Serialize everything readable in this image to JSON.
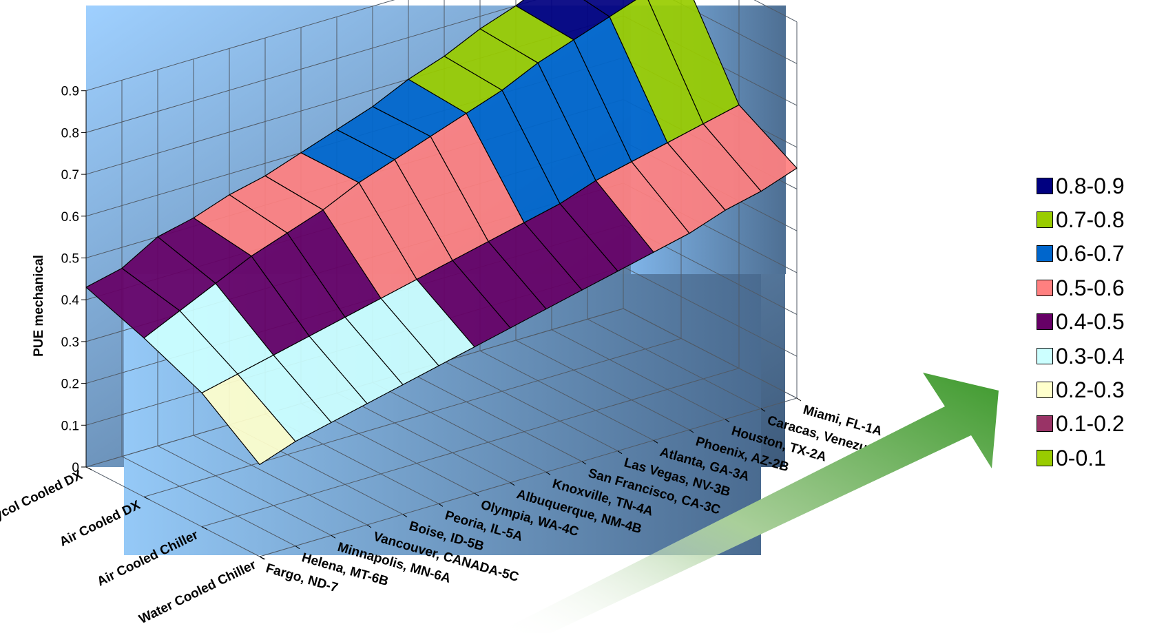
{
  "chart_data": {
    "type": "surface",
    "ylabel": "PUE mechanical",
    "zlim": [
      0,
      0.9
    ],
    "z_ticks": [
      "0",
      "0.1",
      "0.2",
      "0.3",
      "0.4",
      "0.5",
      "0.6",
      "0.7",
      "0.8",
      "0.9"
    ],
    "systems": [
      "Glycol Cooled DX",
      "Air Cooled DX",
      "Air Cooled Chiller",
      "Water Cooled Chiller"
    ],
    "climates": [
      "Fargo, ND-7",
      "Helena, MT-6B",
      "Minnapolis, MN-6A",
      "Vancouver, CANADA-5C",
      "Boise, ID-5B",
      "Peoria, IL-5A",
      "Olympia, WA-4C",
      "Albuquerque, NM-4B",
      "Knoxville, TN-4A",
      "San Francisco, CA-3C",
      "Las Vegas, NV-3B",
      "Atlanta, GA-3A",
      "Phoenix, AZ-2B",
      "Houston, TX-2A",
      "Caracas, Venezuela-1B",
      "Miami, FL-1A"
    ],
    "series": [
      {
        "name": "Glycol Cooled DX",
        "values": [
          0.43,
          0.45,
          0.5,
          0.52,
          0.55,
          0.57,
          0.6,
          0.63,
          0.66,
          0.7,
          0.73,
          0.77,
          0.8,
          0.84,
          0.87,
          0.9
        ]
      },
      {
        "name": "Air Cooled DX",
        "values": [
          0.38,
          0.42,
          0.46,
          0.5,
          0.53,
          0.56,
          0.6,
          0.63,
          0.66,
          0.69,
          0.72,
          0.76,
          0.79,
          0.82,
          0.85,
          0.88
        ]
      },
      {
        "name": "Air Cooled Chiller",
        "values": [
          0.32,
          0.34,
          0.36,
          0.38,
          0.4,
          0.42,
          0.44,
          0.46,
          0.48,
          0.5,
          0.52,
          0.55,
          0.57,
          0.59,
          0.61,
          0.63
        ]
      },
      {
        "name": "Water Cooled Chiller",
        "values": [
          0.22,
          0.25,
          0.27,
          0.29,
          0.31,
          0.33,
          0.35,
          0.37,
          0.39,
          0.41,
          0.43,
          0.45,
          0.47,
          0.5,
          0.52,
          0.55
        ]
      }
    ],
    "legend": [
      {
        "label": "0.8-0.9",
        "color": "#000080"
      },
      {
        "label": "0.7-0.8",
        "color": "#99cc00"
      },
      {
        "label": "0.6-0.7",
        "color": "#0066cc"
      },
      {
        "label": "0.5-0.6",
        "color": "#ff8080"
      },
      {
        "label": "0.4-0.5",
        "color": "#660066"
      },
      {
        "label": "0.3-0.4",
        "color": "#ccffff"
      },
      {
        "label": "0.2-0.3",
        "color": "#ffffcc"
      },
      {
        "label": "0.1-0.2",
        "color": "#993366"
      },
      {
        "label": "0-0.1",
        "color": "#99cc00"
      }
    ],
    "legend_position": "right",
    "grid": true
  }
}
